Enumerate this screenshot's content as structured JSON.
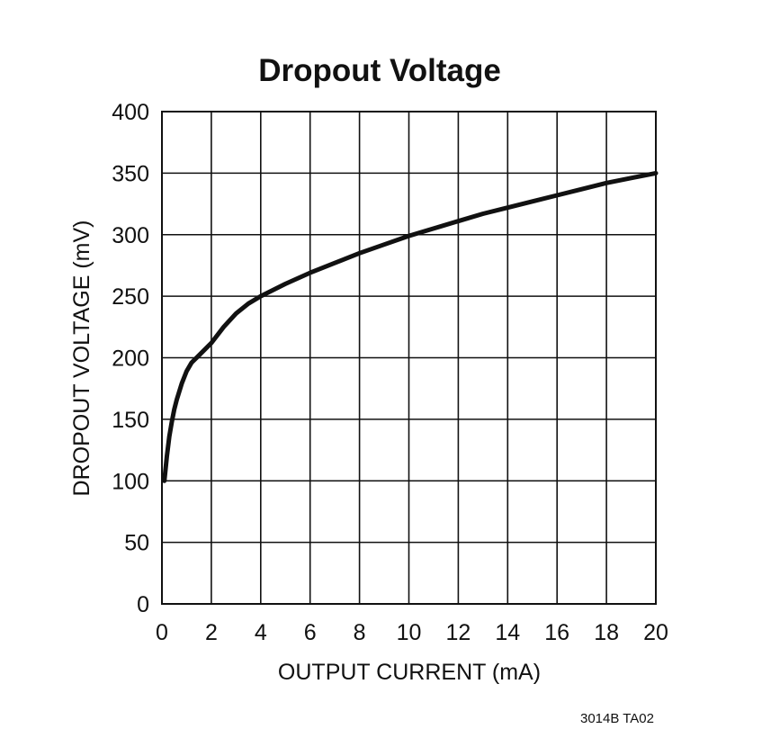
{
  "chart_data": {
    "type": "line",
    "title": "Dropout Voltage",
    "xlabel": "OUTPUT CURRENT (mA)",
    "ylabel": "DROPOUT VOLTAGE (mV)",
    "xlim": [
      0,
      20
    ],
    "ylim": [
      0,
      400
    ],
    "x_ticks": [
      0,
      2,
      4,
      6,
      8,
      10,
      12,
      14,
      16,
      18,
      20
    ],
    "y_ticks": [
      0,
      50,
      100,
      150,
      200,
      250,
      300,
      350,
      400
    ],
    "grid": true,
    "line_color": "#111111",
    "series": [
      {
        "x": [
          0.1,
          0.2,
          0.3,
          0.4,
          0.5,
          0.6,
          0.8,
          1.0,
          1.2,
          1.5,
          2.0,
          2.5,
          3.0,
          3.5,
          4.0,
          5.0,
          6.0,
          7.0,
          8.0,
          9.0,
          10.0,
          11.0,
          12.0,
          13.0,
          14.0,
          15.0,
          16.0,
          17.0,
          18.0,
          19.0,
          20.0
        ],
        "y": [
          100,
          120,
          136,
          148,
          158,
          166,
          179,
          189,
          196,
          202,
          212,
          225,
          236,
          244,
          250,
          260,
          269,
          277,
          285,
          292,
          299,
          305,
          311,
          317,
          322,
          327,
          332,
          337,
          342,
          346,
          350
        ]
      }
    ]
  },
  "footer_code": "3014B TA02"
}
